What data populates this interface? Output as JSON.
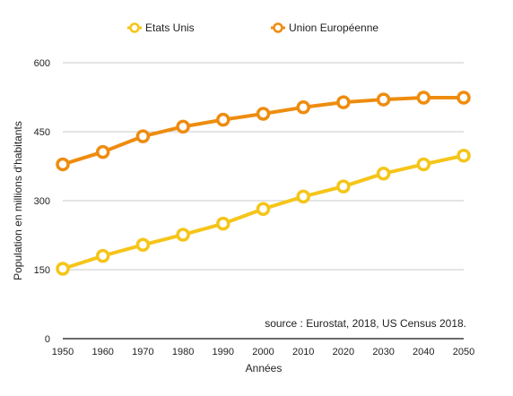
{
  "chart_data": {
    "type": "line",
    "x": [
      1950,
      1960,
      1970,
      1980,
      1990,
      2000,
      2010,
      2020,
      2030,
      2040,
      2050
    ],
    "series": [
      {
        "name": "Etats Unis",
        "color": "#F5C518",
        "values": [
          152,
          180,
          204,
          226,
          250,
          282,
          309,
          331,
          359,
          379,
          398
        ]
      },
      {
        "name": "Union Européenne",
        "color": "#EE8C0F",
        "values": [
          379,
          406,
          440,
          461,
          476,
          489,
          503,
          514,
          520,
          524,
          524
        ]
      }
    ],
    "xlabel": "Années",
    "ylabel": "Population en millions d'habitants",
    "xlim": [
      1950,
      2050
    ],
    "ylim": [
      0,
      600
    ],
    "yticks": [
      0,
      150,
      300,
      450,
      600
    ],
    "xticks": [
      1950,
      1960,
      1970,
      1980,
      1990,
      2000,
      2010,
      2020,
      2030,
      2040,
      2050
    ],
    "grid": true,
    "legend_position": "top-center",
    "annotation": "source : Eurostat, 2018, US Census 2018."
  }
}
